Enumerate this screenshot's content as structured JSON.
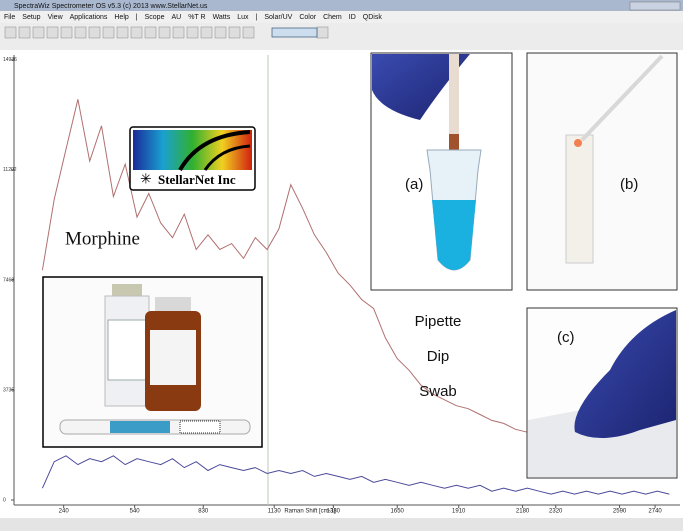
{
  "window": {
    "title": "SpectraWiz Spectrometer OS v5.3 (c) 2013   www.StellarNet.us",
    "menu": [
      "File",
      "Setup",
      "View",
      "Applications",
      "Help",
      "|",
      "Scope",
      "AU",
      "%T R",
      "Watts",
      "Lux",
      "|",
      "Solar/UV",
      "Color",
      "Chem",
      "ID",
      "QDisk"
    ]
  },
  "overlay": {
    "logo": "StellarNet Inc",
    "compound": "Morphine",
    "methods": [
      "Pipette",
      "Dip",
      "Swab"
    ],
    "panels": [
      "(a)",
      "(b)",
      "(c)"
    ]
  },
  "chart_data": {
    "type": "line",
    "x_label": "Raman Shift [cm-1]",
    "x": [
      150,
      200,
      250,
      300,
      350,
      400,
      450,
      500,
      550,
      600,
      650,
      700,
      750,
      800,
      850,
      900,
      950,
      1000,
      1050,
      1100,
      1150,
      1200,
      1250,
      1300,
      1350,
      1400,
      1450,
      1500,
      1550,
      1600,
      1650,
      1700,
      1750,
      1800,
      1850,
      1900,
      1950,
      2000,
      2050,
      2100,
      2150,
      2200,
      2250,
      2300,
      2350,
      2400,
      2450,
      2500,
      2550,
      2600,
      2650,
      2700,
      2750,
      2800
    ],
    "series": [
      {
        "color": "#b07070",
        "values": [
          7800,
          10200,
          11900,
          13600,
          11500,
          12700,
          10300,
          11400,
          9600,
          10400,
          9400,
          8900,
          9700,
          8500,
          9000,
          8500,
          8700,
          8200,
          8900,
          8500,
          9200,
          10700,
          9900,
          9000,
          8400,
          7700,
          7300,
          6800,
          6500,
          5500,
          4800,
          4400,
          3900,
          3600,
          3400,
          3200,
          3100,
          2900,
          2700,
          2600,
          2400,
          2300,
          2200,
          2100,
          2000,
          2000,
          1900,
          1800,
          1700,
          1600,
          1500,
          1400,
          1300,
          1200
        ]
      },
      {
        "color": "#4a4a9a",
        "values": [
          400,
          1300,
          1500,
          1200,
          1400,
          1300,
          1500,
          1200,
          1400,
          1300,
          1200,
          1400,
          1100,
          1300,
          1000,
          1200,
          1100,
          1000,
          1100,
          900,
          1000,
          900,
          1000,
          800,
          900,
          800,
          700,
          800,
          600,
          700,
          600,
          500,
          600,
          500,
          400,
          500,
          400,
          500,
          300,
          400,
          300,
          400,
          300,
          200,
          300,
          200,
          300,
          200,
          300,
          200,
          300,
          200,
          300,
          200
        ]
      }
    ],
    "xlim": [
      30,
      2820
    ],
    "xticks": [
      240,
      540,
      830,
      1130,
      1380,
      1650,
      1910,
      2180,
      2320,
      2590,
      2740
    ],
    "ylim": [
      0,
      15000
    ],
    "yticks": [
      0,
      3735,
      7468,
      11202,
      14936
    ]
  }
}
